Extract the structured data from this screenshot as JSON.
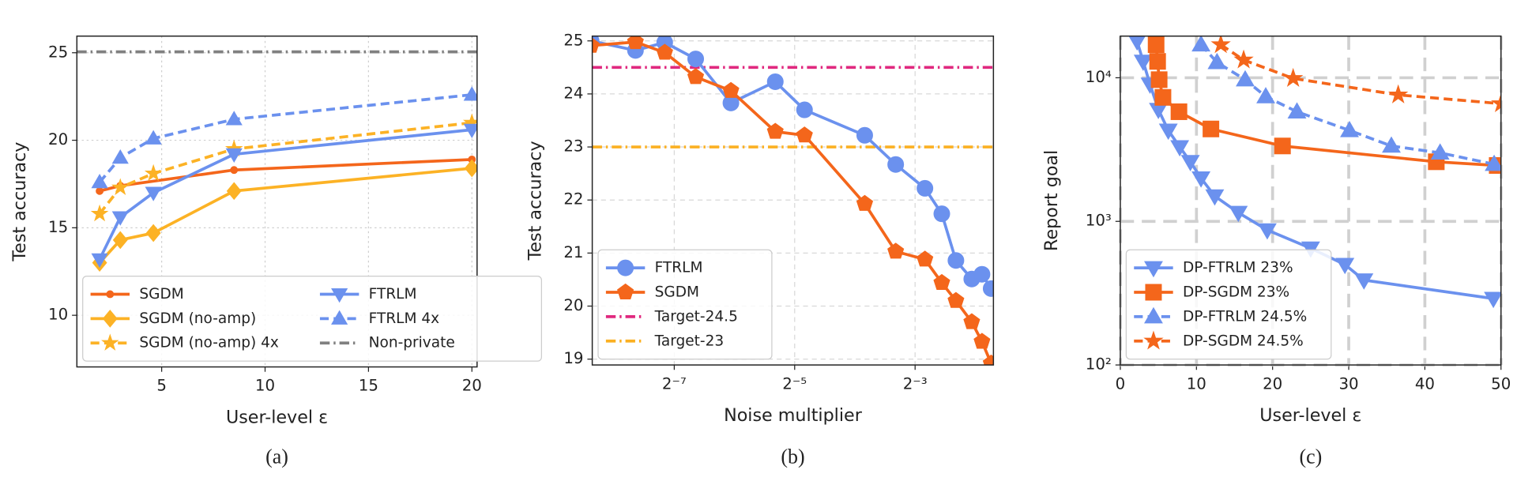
{
  "chart_data": [
    {
      "type": "line",
      "caption": "(a)",
      "xlabel": "User-level ε",
      "ylabel": "Test accuracy",
      "xlim": [
        0.9,
        20.25
      ],
      "ylim": [
        7.05,
        25.95
      ],
      "xticks": [
        5,
        10,
        15,
        20
      ],
      "yticks": [
        10,
        15,
        20,
        25
      ],
      "grid": "dotted",
      "legend": {
        "loc": "lower left",
        "ncol": 2
      },
      "series": [
        {
          "name": "SGDM",
          "color": "#f4661b",
          "marker": "circle",
          "linestyle": "solid",
          "x": [
            2,
            3,
            8.5,
            20
          ],
          "values": [
            17.1,
            17.4,
            18.3,
            18.9
          ]
        },
        {
          "name": "SGDM (no-amp)",
          "color": "#fcb225",
          "marker": "diamond",
          "linestyle": "solid",
          "x": [
            2,
            3,
            4.6,
            8.5,
            20
          ],
          "values": [
            13.0,
            14.3,
            14.7,
            17.1,
            18.4
          ]
        },
        {
          "name": "SGDM (no-amp) 4x",
          "color": "#fcb225",
          "marker": "star",
          "linestyle": "dashed",
          "x": [
            2,
            3,
            4.6,
            8.5,
            20
          ],
          "values": [
            15.8,
            17.3,
            18.1,
            19.5,
            21.0
          ]
        },
        {
          "name": "FTRLM",
          "color": "#6b91ee",
          "marker": "tri_down",
          "linestyle": "solid",
          "x": [
            2,
            3,
            4.6,
            8.5,
            20
          ],
          "values": [
            13.2,
            15.6,
            17.0,
            19.2,
            20.6
          ]
        },
        {
          "name": "FTRLM 4x",
          "color": "#6b91ee",
          "marker": "tri_up",
          "linestyle": "dashed",
          "x": [
            2,
            3,
            4.6,
            8.5,
            20
          ],
          "values": [
            17.6,
            19.0,
            20.1,
            21.2,
            22.6
          ]
        }
      ],
      "hlines": [
        {
          "name": "Non-private",
          "color": "#808080",
          "y": 25.05
        }
      ]
    },
    {
      "type": "line",
      "caption": "(b)",
      "xlabel": "Noise multiplier",
      "ylabel": "Test accuracy",
      "xscale": "log",
      "xlim": [
        0.00304,
        0.308
      ],
      "ylim": [
        18.89,
        25.09
      ],
      "xticks": [
        {
          "value": 0.0078125,
          "label": "2⁻⁷"
        },
        {
          "value": 0.03125,
          "label": "2⁻⁵"
        },
        {
          "value": 0.125,
          "label": "2⁻³"
        }
      ],
      "yticks": [
        19,
        20,
        21,
        22,
        23,
        24,
        25
      ],
      "grid": "dashed",
      "legend": {
        "loc": "lower left",
        "ncol": 1
      },
      "series": [
        {
          "name": "FTRLM",
          "color": "#6b91ee",
          "marker": "circle",
          "linestyle": "solid",
          "x": [
            0.003,
            0.005,
            0.007,
            0.01,
            0.015,
            0.025,
            0.035,
            0.07,
            0.1,
            0.14,
            0.17,
            0.2,
            0.24,
            0.27,
            0.3
          ],
          "values": [
            25.0,
            24.82,
            24.97,
            24.66,
            23.83,
            24.23,
            23.7,
            23.22,
            22.67,
            22.22,
            21.74,
            20.86,
            20.51,
            20.6,
            20.33
          ]
        },
        {
          "name": "SGDM",
          "color": "#f4661b",
          "marker": "pentagon",
          "linestyle": "solid",
          "x": [
            0.003,
            0.005,
            0.007,
            0.01,
            0.015,
            0.025,
            0.035,
            0.07,
            0.1,
            0.14,
            0.17,
            0.2,
            0.24,
            0.27,
            0.3
          ],
          "values": [
            24.91,
            24.98,
            24.78,
            24.32,
            24.06,
            23.29,
            23.22,
            21.93,
            21.03,
            20.88,
            20.44,
            20.1,
            19.7,
            19.33,
            18.92
          ]
        }
      ],
      "hlines": [
        {
          "name": "Target-24.5",
          "color": "#e0297f",
          "y": 24.5
        },
        {
          "name": "Target-23",
          "color": "#fbb022",
          "y": 23
        }
      ]
    },
    {
      "type": "line",
      "caption": "(c)",
      "xlabel": "User-level ε",
      "ylabel": "Report goal",
      "yscale": "log",
      "xlim": [
        0,
        50
      ],
      "ylim": [
        100,
        19500
      ],
      "xticks": [
        0,
        10,
        20,
        30,
        40,
        50
      ],
      "yticks": [
        {
          "value": 100,
          "label": "10²"
        },
        {
          "value": 1000,
          "label": "10³"
        },
        {
          "value": 10000,
          "label": "10⁴"
        }
      ],
      "grid": "dashed-bold",
      "legend": {
        "loc": "lower left",
        "ncol": 1
      },
      "series": [
        {
          "name": "DP-FTRLM 23%",
          "color": "#6b91ee",
          "marker": "tri_down",
          "linestyle": "solid",
          "x": [
            2.2,
            3,
            3.9,
            5,
            6.3,
            7.8,
            9.2,
            10.6,
            12.4,
            15.5,
            19.3,
            25,
            29.5,
            32,
            49
          ],
          "values": [
            18000,
            13000,
            9000,
            6000,
            4300,
            3300,
            2600,
            2000,
            1500,
            1150,
            870,
            650,
            500,
            390,
            290
          ]
        },
        {
          "name": "DP-SGDM 23%",
          "color": "#f4661b",
          "marker": "square",
          "linestyle": "solid",
          "x": [
            4.7,
            4.9,
            5.1,
            5.6,
            7.7,
            11.9,
            21.3,
            41.5,
            49.5
          ],
          "values": [
            17000,
            13000,
            9700,
            7300,
            5800,
            4400,
            3350,
            2600,
            2450
          ]
        },
        {
          "name": "DP-FTRLM 24.5%",
          "color": "#6b91ee",
          "marker": "tri_up",
          "linestyle": "dashed",
          "x": [
            10.6,
            12.7,
            16.4,
            19.1,
            23.2,
            30.1,
            35.6,
            42,
            49.1
          ],
          "values": [
            17000,
            12800,
            9700,
            7400,
            5800,
            4300,
            3350,
            3000,
            2500
          ]
        },
        {
          "name": "DP-SGDM 24.5%",
          "color": "#f4661b",
          "marker": "star",
          "linestyle": "dashed",
          "x": [
            13.2,
            16.2,
            22.7,
            36.5,
            50
          ],
          "values": [
            17000,
            13300,
            9900,
            7600,
            6600
          ]
        }
      ]
    }
  ]
}
